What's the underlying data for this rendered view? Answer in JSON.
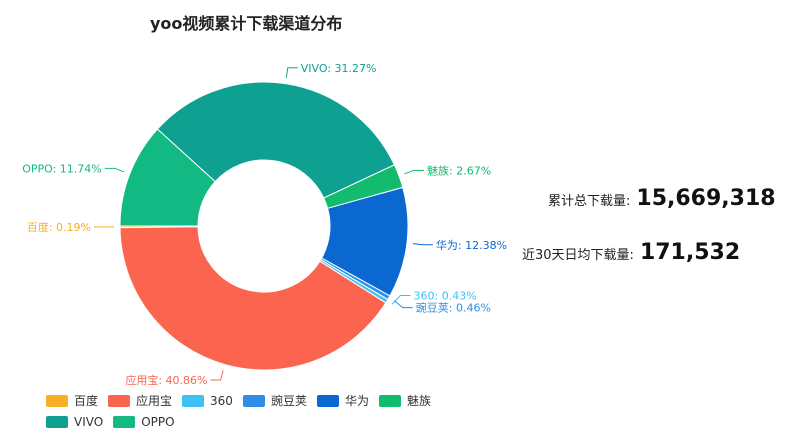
{
  "title": "yoo视频累计下载渠道分布",
  "stats": {
    "total_label": "累计总下载量:",
    "total_value": "15,669,318",
    "avg_label": "近30天日均下载量:",
    "avg_value": "171,532"
  },
  "chart_data": {
    "type": "pie",
    "title": "yoo视频累计下载渠道分布",
    "donut": true,
    "legend_position": "bottom-left",
    "categories": [
      "百度",
      "应用宝",
      "360",
      "豌豆荚",
      "华为",
      "魅族",
      "VIVO",
      "OPPO"
    ],
    "values": [
      0.19,
      40.86,
      0.43,
      0.46,
      12.38,
      2.67,
      31.27,
      11.74
    ],
    "labels": [
      "百度: 0.19%",
      "应用宝: 40.86%",
      "360: 0.43%",
      "豌豆荚: 0.46%",
      "华为: 12.38%",
      "魅族: 2.67%",
      "VIVO: 31.27%",
      "OPPO: 11.74%"
    ],
    "colors": [
      "#f6b026",
      "#fb6550",
      "#3ec1f3",
      "#2d8ee6",
      "#0b68d0",
      "#12bb6d",
      "#0ea192",
      "#12b982"
    ]
  }
}
